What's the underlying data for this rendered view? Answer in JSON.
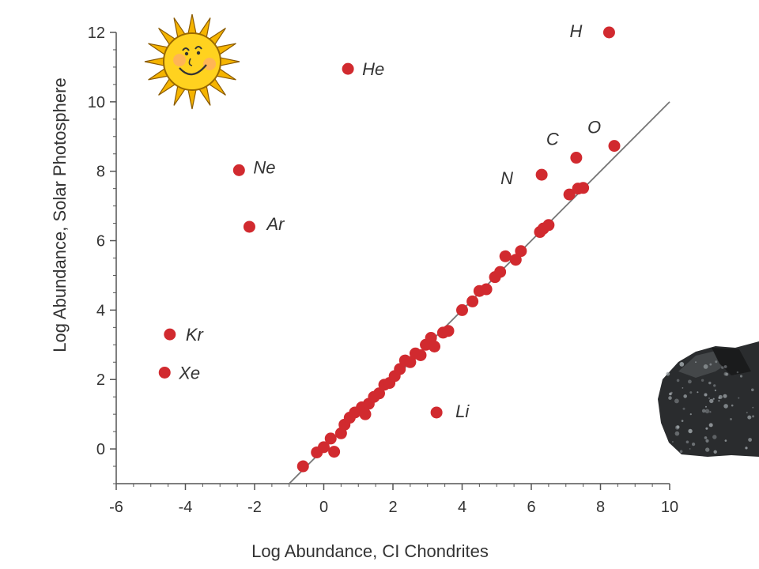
{
  "chart_data": {
    "type": "scatter",
    "title": "",
    "xlabel": "Log Abundance, CI Chondrites",
    "ylabel": "Log Abundance, Solar Photosphere",
    "xlim": [
      -6,
      10
    ],
    "ylim": [
      -1,
      12
    ],
    "xticks": [
      -6,
      -4,
      -2,
      0,
      2,
      4,
      6,
      8,
      10
    ],
    "yticks": [
      0,
      2,
      4,
      6,
      8,
      10,
      12
    ],
    "grid": false,
    "point_color": "#d12a2f",
    "line_color": "#777777",
    "reference_line": {
      "x": [
        -1,
        10
      ],
      "y": [
        -1,
        10
      ]
    },
    "labeled_points": [
      {
        "label": "H",
        "x": 8.25,
        "y": 12.0
      },
      {
        "label": "He",
        "x": 0.7,
        "y": 10.95
      },
      {
        "label": "O",
        "x": 8.4,
        "y": 8.73
      },
      {
        "label": "C",
        "x": 7.3,
        "y": 8.39
      },
      {
        "label": "N",
        "x": 6.3,
        "y": 7.9
      },
      {
        "label": "Ne",
        "x": -2.45,
        "y": 8.03
      },
      {
        "label": "Ar",
        "x": -2.15,
        "y": 6.4
      },
      {
        "label": "Kr",
        "x": -4.45,
        "y": 3.3
      },
      {
        "label": "Xe",
        "x": -4.6,
        "y": 2.2
      },
      {
        "label": "Li",
        "x": 3.26,
        "y": 1.05
      }
    ],
    "points": [
      {
        "x": -0.6,
        "y": -0.5
      },
      {
        "x": -0.2,
        "y": -0.1
      },
      {
        "x": 0.0,
        "y": 0.05
      },
      {
        "x": 0.3,
        "y": -0.08
      },
      {
        "x": 0.2,
        "y": 0.3
      },
      {
        "x": 0.5,
        "y": 0.45
      },
      {
        "x": 0.6,
        "y": 0.7
      },
      {
        "x": 0.75,
        "y": 0.9
      },
      {
        "x": 0.9,
        "y": 1.05
      },
      {
        "x": 1.1,
        "y": 1.2
      },
      {
        "x": 1.2,
        "y": 1.0
      },
      {
        "x": 1.3,
        "y": 1.3
      },
      {
        "x": 1.45,
        "y": 1.5
      },
      {
        "x": 1.6,
        "y": 1.6
      },
      {
        "x": 1.75,
        "y": 1.85
      },
      {
        "x": 1.9,
        "y": 1.9
      },
      {
        "x": 2.05,
        "y": 2.1
      },
      {
        "x": 2.2,
        "y": 2.3
      },
      {
        "x": 2.35,
        "y": 2.55
      },
      {
        "x": 2.5,
        "y": 2.5
      },
      {
        "x": 2.65,
        "y": 2.75
      },
      {
        "x": 2.8,
        "y": 2.7
      },
      {
        "x": 2.95,
        "y": 3.0
      },
      {
        "x": 3.1,
        "y": 3.2
      },
      {
        "x": 3.2,
        "y": 2.95
      },
      {
        "x": 3.45,
        "y": 3.35
      },
      {
        "x": 3.6,
        "y": 3.4
      },
      {
        "x": 4.0,
        "y": 4.0
      },
      {
        "x": 4.3,
        "y": 4.25
      },
      {
        "x": 4.5,
        "y": 4.55
      },
      {
        "x": 4.7,
        "y": 4.6
      },
      {
        "x": 4.95,
        "y": 4.95
      },
      {
        "x": 5.1,
        "y": 5.1
      },
      {
        "x": 5.25,
        "y": 5.55
      },
      {
        "x": 5.55,
        "y": 5.45
      },
      {
        "x": 5.7,
        "y": 5.7
      },
      {
        "x": 6.25,
        "y": 6.25
      },
      {
        "x": 6.35,
        "y": 6.35
      },
      {
        "x": 6.5,
        "y": 6.45
      },
      {
        "x": 7.1,
        "y": 7.33
      },
      {
        "x": 7.35,
        "y": 7.5
      },
      {
        "x": 7.5,
        "y": 7.52
      }
    ]
  },
  "decorations": {
    "sun_icon": "smiling-sun-illustration",
    "meteorite_image": "meteorite-photo"
  }
}
